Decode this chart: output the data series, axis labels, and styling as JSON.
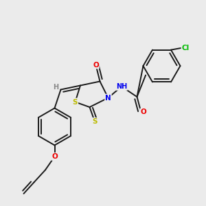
{
  "bg_color": "#ebebeb",
  "bond_color": "#1a1a1a",
  "atom_colors": {
    "N": "#0000ee",
    "O": "#ee0000",
    "S": "#bbbb00",
    "Cl": "#00bb00",
    "H": "#888888"
  },
  "bond_width": 1.4,
  "fig_size": [
    3.0,
    3.0
  ],
  "dpi": 100
}
